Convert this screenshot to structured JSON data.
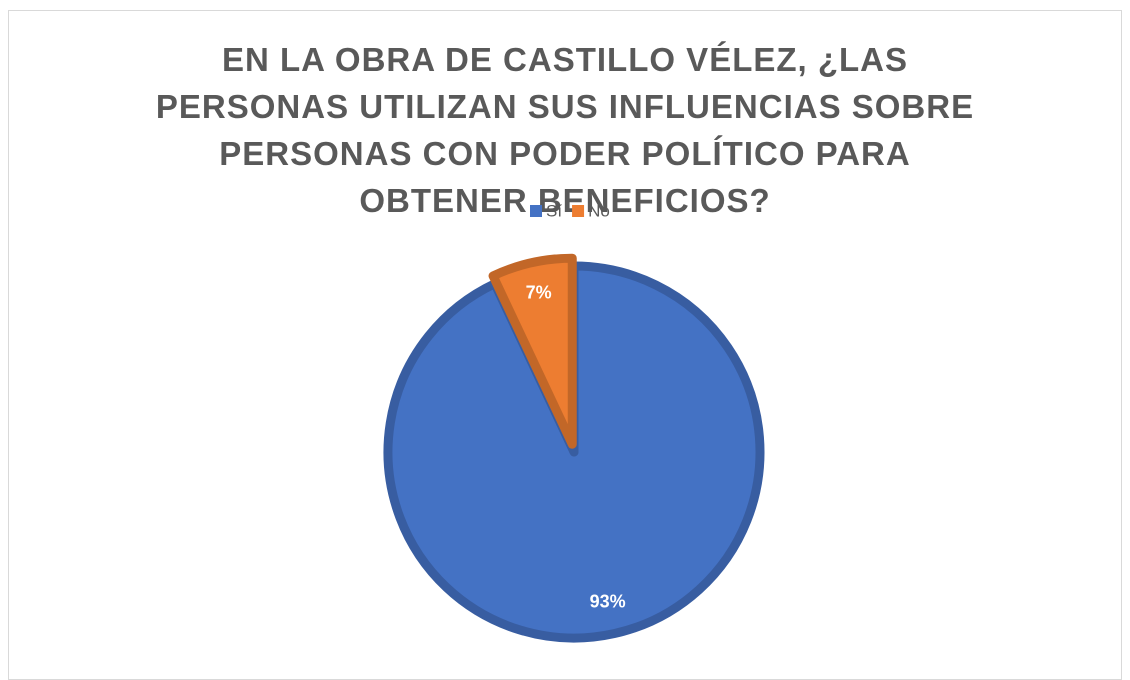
{
  "chart_data": {
    "type": "pie",
    "title": "EN LA OBRA DE CASTILLO VÉLEZ, ¿LAS PERSONAS UTILIZAN SUS INFLUENCIAS SOBRE PERSONAS CON PODER POLÍTICO PARA OBTENER BENEFICIOS?",
    "categories": [
      "Sí",
      "No"
    ],
    "values": [
      93,
      7
    ],
    "value_labels": [
      "93%",
      "7%"
    ],
    "colors": [
      "#4472c4",
      "#ed7d31"
    ],
    "legend": "top"
  }
}
